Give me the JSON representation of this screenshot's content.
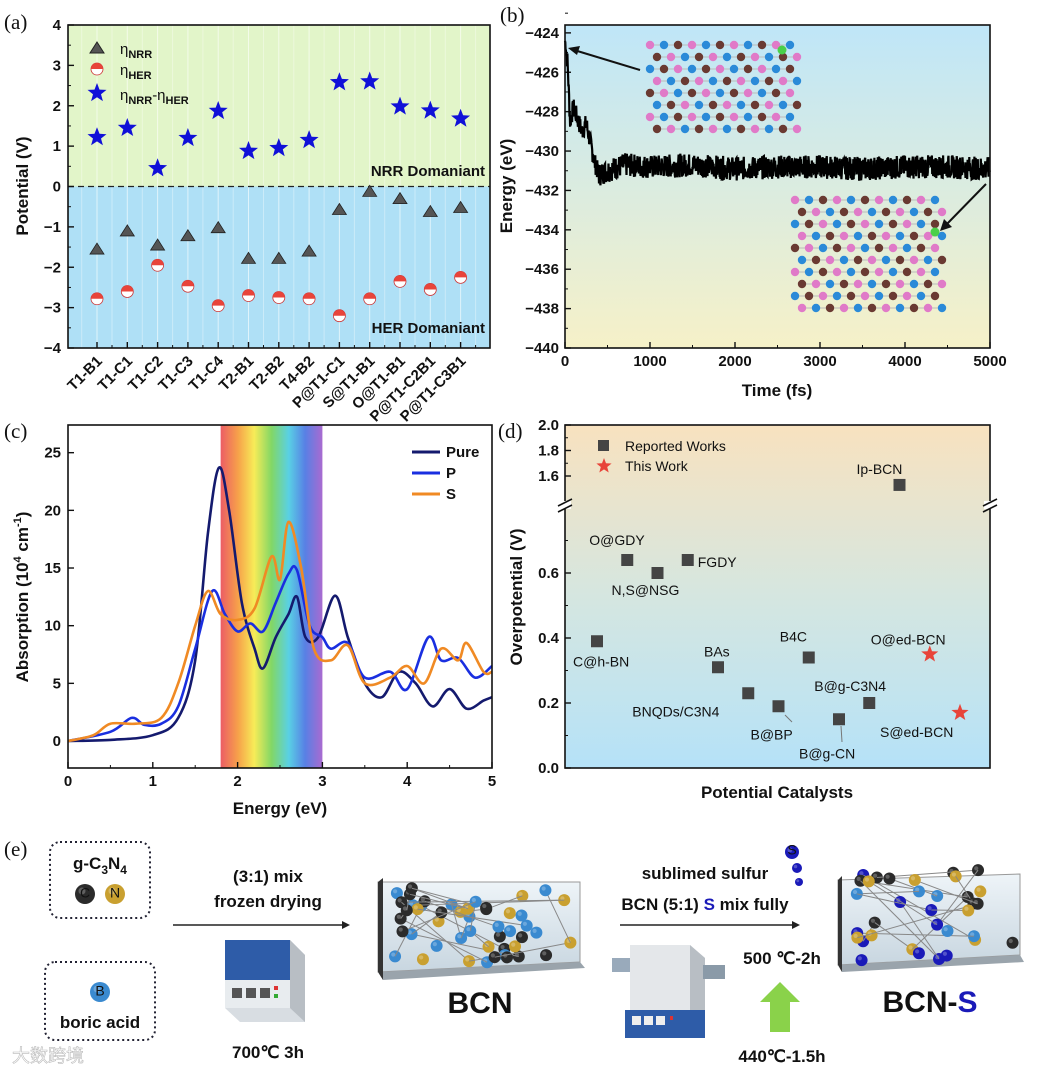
{
  "chart_data": [
    {
      "panel": "(a)",
      "type": "scatter",
      "ylabel": "Potential (V)",
      "xlabel": "",
      "ylim": [
        -4,
        4
      ],
      "yticks": [
        -4,
        -3,
        -2,
        -1,
        0,
        1,
        2,
        3,
        4
      ],
      "categories": [
        "T1-B1",
        "T1-C1",
        "T1-C2",
        "T1-C3",
        "T1-C4",
        "T2-B1",
        "T2-B2",
        "T4-B2",
        "P@T1-C1",
        "S@T1-B1",
        "O@T1-B1",
        "P@T1-C2B1",
        "P@T1-C3B1"
      ],
      "series": [
        {
          "name": "ηNRR",
          "symbol": "η",
          "sub": "NRR",
          "marker": "triangle",
          "color": "#555555",
          "values": [
            -1.55,
            -1.1,
            -1.45,
            -1.22,
            -1.02,
            -1.78,
            -1.78,
            -1.6,
            -0.57,
            -0.12,
            -0.3,
            -0.62,
            -0.52
          ]
        },
        {
          "name": "ηHER",
          "symbol": "η",
          "sub": "HER",
          "marker": "half-circle",
          "color": "#e8443a",
          "values": [
            -2.78,
            -2.6,
            -1.95,
            -2.47,
            -2.95,
            -2.7,
            -2.75,
            -2.78,
            -3.2,
            -2.78,
            -2.35,
            -2.55,
            -2.25
          ]
        },
        {
          "name": "ηNRR-ηHER",
          "parts": [
            "η",
            "NRR",
            "-η",
            "HER"
          ],
          "marker": "star",
          "color": "#1010d8",
          "values": [
            1.22,
            1.45,
            0.45,
            1.2,
            1.87,
            0.88,
            0.95,
            1.15,
            2.58,
            2.6,
            1.98,
            1.88,
            1.68
          ]
        }
      ],
      "annotations": [
        "NRR Domaniant",
        "HER Domaniant"
      ],
      "regions": {
        "top_color": "#e2f5c9",
        "bottom_color": "#afe0f6"
      }
    },
    {
      "panel": "(b)",
      "type": "line",
      "xlabel": "Time (fs)",
      "ylabel": "Energy (eV)",
      "xlim": [
        0,
        5000
      ],
      "ylim": [
        -440,
        -423.6
      ],
      "xticks": [
        0,
        1000,
        2000,
        3000,
        4000,
        5000
      ],
      "yticks": [
        -440,
        -438,
        -436,
        -434,
        -432,
        -430,
        -428,
        -426,
        -424
      ],
      "series": [
        {
          "name": "Energy",
          "color": "#000000",
          "x": [
            0,
            30,
            60,
            100,
            150,
            200,
            250,
            300,
            350,
            400,
            500,
            700,
            1000,
            1500,
            2000,
            2500,
            3000,
            3500,
            4000,
            4500,
            5000
          ],
          "y": [
            -424.4,
            -425.5,
            -428.5,
            -427.8,
            -428.4,
            -429.0,
            -428.6,
            -429.6,
            -430.6,
            -431.2,
            -431.0,
            -430.7,
            -430.8,
            -430.7,
            -430.9,
            -430.8,
            -430.8,
            -430.9,
            -430.8,
            -430.8,
            -430.9
          ],
          "fluctuation": 0.6
        }
      ]
    },
    {
      "panel": "(c)",
      "type": "line",
      "xlabel": "Energy (eV)",
      "ylabel_parts": [
        "Absorption (10",
        "4",
        " cm",
        "-1",
        ")"
      ],
      "xlim": [
        0,
        5
      ],
      "ylim": [
        -2.34,
        27.4
      ],
      "xticks": [
        0,
        1,
        2,
        3,
        4,
        5
      ],
      "yticks": [
        0,
        5,
        10,
        15,
        20,
        25
      ],
      "visible_band": [
        1.8,
        3.0
      ],
      "legend": "top-right",
      "series": [
        {
          "name": "Pure",
          "color": "#141a6e",
          "x": [
            0,
            0.5,
            1,
            1.3,
            1.5,
            1.65,
            1.78,
            1.9,
            2.05,
            2.2,
            2.3,
            2.45,
            2.6,
            2.7,
            2.8,
            2.95,
            3.15,
            3.3,
            3.5,
            3.7,
            3.9,
            4.1,
            4.3,
            4.5,
            4.7,
            4.9,
            5
          ],
          "y": [
            0,
            0.1,
            0.5,
            2,
            7,
            18,
            23.7,
            20,
            12,
            8,
            6.3,
            9,
            11,
            12.5,
            9,
            9,
            12.6,
            9,
            5,
            3.8,
            6,
            5,
            3,
            4.5,
            2.8,
            3.5,
            3.8
          ]
        },
        {
          "name": "P",
          "color": "#1a2fe0",
          "x": [
            0,
            0.5,
            0.75,
            0.9,
            1.1,
            1.3,
            1.5,
            1.7,
            1.85,
            2.0,
            2.15,
            2.3,
            2.45,
            2.6,
            2.7,
            2.85,
            3.0,
            3.1,
            3.3,
            3.5,
            3.8,
            4.0,
            4.25,
            4.4,
            4.6,
            4.8,
            5
          ],
          "y": [
            0,
            0.8,
            2,
            1.4,
            1.5,
            3,
            8,
            13,
            11,
            9.5,
            10.2,
            9.5,
            12,
            14.5,
            14.8,
            10,
            9,
            8,
            8.5,
            5.5,
            6,
            4.5,
            9,
            7,
            7.2,
            5.5,
            6.5
          ]
        },
        {
          "name": "S",
          "color": "#f08a24",
          "x": [
            0,
            0.3,
            0.5,
            0.8,
            1.1,
            1.3,
            1.5,
            1.65,
            1.8,
            2.0,
            2.2,
            2.4,
            2.5,
            2.6,
            2.75,
            2.9,
            3.1,
            3.3,
            3.5,
            3.8,
            4.0,
            4.2,
            4.4,
            4.6,
            4.7,
            4.9,
            5
          ],
          "y": [
            0,
            0.5,
            1.5,
            1.5,
            2,
            5,
            10,
            13,
            11,
            10.5,
            11.5,
            16,
            14,
            19,
            15,
            8,
            7,
            8.3,
            5,
            5.5,
            6.5,
            5,
            8,
            7,
            8.5,
            6,
            6
          ]
        }
      ]
    },
    {
      "panel": "(d)",
      "type": "scatter",
      "xlabel": "Potential Catalysts",
      "ylabel": "Overpotential (V)",
      "ylim": [
        0,
        2.0
      ],
      "axis_break": [
        0.8,
        1.5
      ],
      "yticks_lower": [
        "0.0",
        "0.2",
        "0.4",
        "0.6"
      ],
      "yticks_upper": [
        "1.6",
        "1.8",
        "2.0"
      ],
      "legend": [
        {
          "name": "Reported Works",
          "marker": "square",
          "color": "#444444"
        },
        {
          "name": "This Work",
          "marker": "star",
          "color": "#e8443a"
        }
      ],
      "points": [
        {
          "label": "C@h-BN",
          "value": 0.39,
          "group": "Reported Works"
        },
        {
          "label": "O@GDY",
          "value": 0.64,
          "group": "Reported Works"
        },
        {
          "label": "N,S@NSG",
          "value": 0.6,
          "group": "Reported Works"
        },
        {
          "label": "FGDY",
          "value": 0.64,
          "group": "Reported Works"
        },
        {
          "label": "BAs",
          "value": 0.31,
          "group": "Reported Works"
        },
        {
          "label": "BNQDs/C3N4",
          "value": 0.23,
          "group": "Reported Works"
        },
        {
          "label": "B@BP",
          "value": 0.19,
          "group": "Reported Works"
        },
        {
          "label": "B4C",
          "value": 0.34,
          "group": "Reported Works"
        },
        {
          "label": "B@g-CN",
          "value": 0.15,
          "group": "Reported Works"
        },
        {
          "label": "B@g-C3N4",
          "value": 0.2,
          "group": "Reported Works"
        },
        {
          "label": "Ip-BCN",
          "value": 1.53,
          "group": "Reported Works"
        },
        {
          "label": "O@ed-BCN",
          "value": 0.35,
          "group": "This Work"
        },
        {
          "label": "S@ed-BCN",
          "value": 0.17,
          "group": "This Work"
        }
      ]
    }
  ],
  "schematic": {
    "panel": "(e)",
    "precursor1": {
      "parts": [
        "g-C",
        "3",
        "N",
        "4"
      ],
      "atoms": [
        "C",
        "N"
      ]
    },
    "precursor2": {
      "label": "boric acid",
      "atom": "B"
    },
    "step1": {
      "line1": "(3:1) mix",
      "line2": "frozen drying",
      "condition": "700℃ 3h"
    },
    "product1": "BCN",
    "step2": {
      "line1": "sublimed sulfur",
      "line2_a": "BCN (5:1) ",
      "line2_s": "S",
      "line2_b": " mix fully",
      "condition1": "500 ℃-2h",
      "condition2": "440℃-1.5h",
      "sulfur_atom": "S"
    },
    "product2_a": "BCN-",
    "product2_s": "S",
    "colors": {
      "carbon": "#2b2b2b",
      "nitrogen": "#c9a030",
      "boron": "#3a8ad0",
      "sulfur": "#1a1ab8",
      "heat_arrow": "#8ad24a"
    }
  },
  "watermark": "大数跨境"
}
